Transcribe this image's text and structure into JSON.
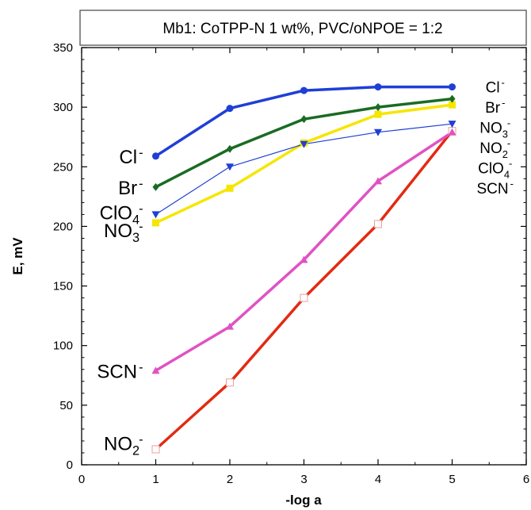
{
  "chart_data": {
    "type": "line",
    "title": "Mb1: CoTPP-N 1 wt%, PVC/oNPOE = 1:2",
    "xlabel": "-log a",
    "ylabel": "E, mV",
    "xlim": [
      0,
      6
    ],
    "ylim": [
      0,
      350
    ],
    "x_ticks": [
      0,
      1,
      2,
      3,
      4,
      5,
      6
    ],
    "y_ticks": [
      0,
      50,
      100,
      150,
      200,
      250,
      300,
      350
    ],
    "grid": false,
    "x": [
      1,
      2,
      3,
      4,
      5
    ],
    "series": [
      {
        "name": "Cl⁻",
        "label_main": "Cl",
        "label_sub": "",
        "label_sup": "-",
        "color": "#1f3fd6",
        "marker": "circle",
        "width": 3.5,
        "values": [
          259,
          299,
          314,
          317,
          317
        ]
      },
      {
        "name": "Br⁻",
        "label_main": "Br",
        "label_sub": "",
        "label_sup": "-",
        "color": "#1a6b23",
        "marker": "diamond",
        "width": 3.5,
        "values": [
          233,
          265,
          290,
          300,
          307
        ]
      },
      {
        "name": "ClO₄⁻",
        "label_main": "ClO",
        "label_sub": "4",
        "label_sup": "-",
        "color": "#1f3fd6",
        "marker": "triangle-down",
        "width": 1.2,
        "values": [
          210,
          250,
          269,
          279,
          286
        ]
      },
      {
        "name": "NO₃⁻",
        "label_main": "NO",
        "label_sub": "3",
        "label_sup": "-",
        "color": "#f5e600",
        "marker": "square",
        "width": 3.5,
        "values": [
          203,
          232,
          270,
          294,
          302
        ]
      },
      {
        "name": "SCN⁻",
        "label_main": "SCN",
        "label_sub": "",
        "label_sup": "-",
        "color": "#e052c2",
        "marker": "triangle-up",
        "width": 3.5,
        "values": [
          79,
          116,
          172,
          238,
          279
        ]
      },
      {
        "name": "NO₂⁻",
        "label_main": "NO",
        "label_sub": "2",
        "label_sup": "-",
        "color": "#e32a12",
        "marker": "open-square",
        "width": 3.5,
        "values": [
          13,
          69,
          140,
          202,
          280
        ]
      }
    ],
    "right_labels": [
      {
        "main": "Cl",
        "sub": "",
        "sup": "-"
      },
      {
        "main": "Br",
        "sub": "",
        "sup": "-"
      },
      {
        "main": "NO",
        "sub": "3",
        "sup": "-"
      },
      {
        "main": "NO",
        "sub": "2",
        "sup": "-"
      },
      {
        "main": "ClO",
        "sub": "4",
        "sup": "-"
      },
      {
        "main": "SCN",
        "sub": "",
        "sup": "-"
      }
    ]
  }
}
